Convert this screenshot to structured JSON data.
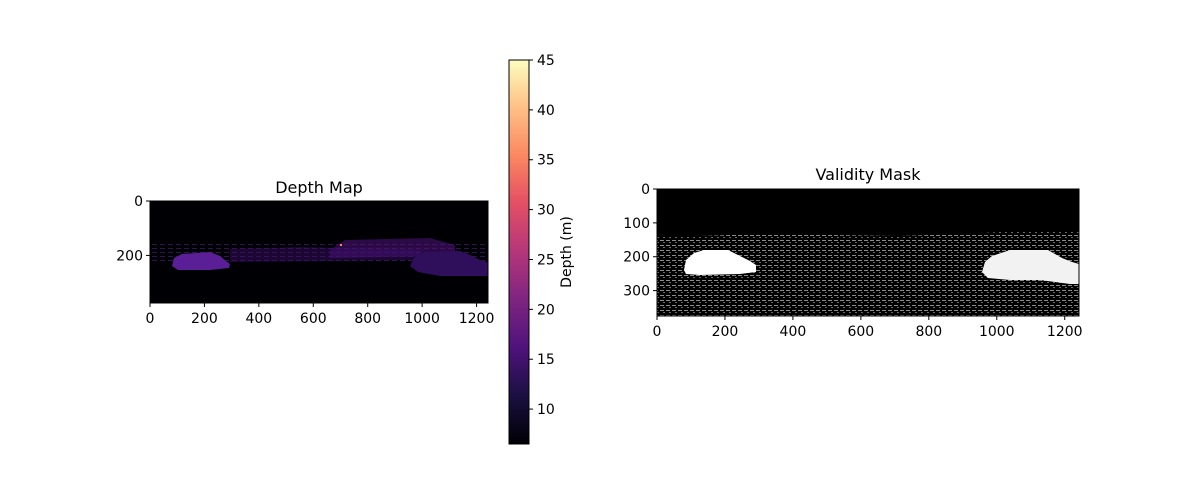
{
  "chart_data": [
    {
      "type": "heatmap",
      "title": "Depth Map",
      "colormap": "magma",
      "image_size": [
        1242,
        375
      ],
      "xlim": [
        0,
        1242
      ],
      "ylim": [
        375,
        0
      ],
      "xticks": [
        0,
        200,
        400,
        600,
        800,
        1000,
        1200
      ],
      "yticks": [
        0,
        200
      ],
      "colorbar": {
        "label": "Depth (m)",
        "range": [
          6.5,
          45
        ],
        "ticks": [
          10,
          15,
          20,
          25,
          30,
          35,
          40,
          45
        ]
      }
    },
    {
      "type": "heatmap",
      "title": "Validity Mask",
      "colormap": "gray",
      "image_size": [
        1242,
        375
      ],
      "xlim": [
        0,
        1242
      ],
      "ylim": [
        375,
        0
      ],
      "xticks": [
        0,
        200,
        400,
        600,
        800,
        1000,
        1200
      ],
      "yticks": [
        0,
        100,
        200,
        300
      ]
    }
  ]
}
